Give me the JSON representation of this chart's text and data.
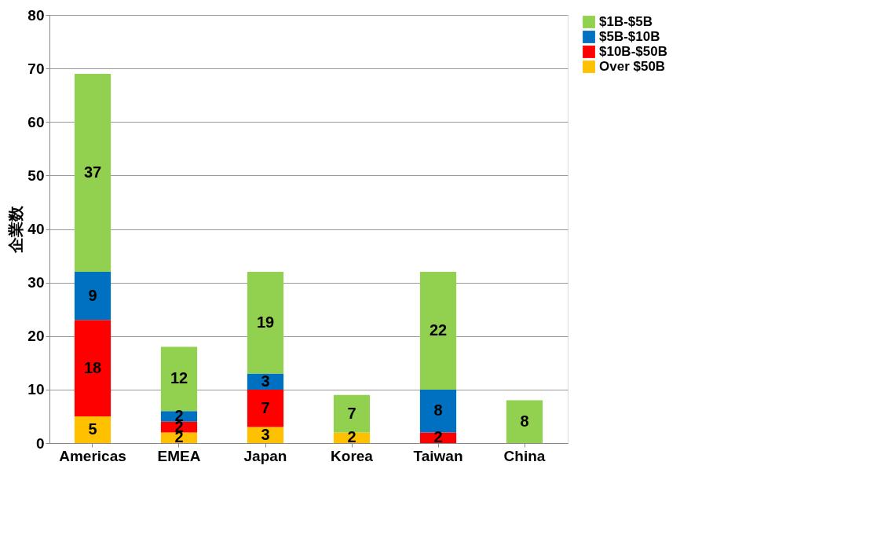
{
  "chart_data": {
    "type": "bar",
    "stacked": true,
    "ylabel": "企業数",
    "categories": [
      "Americas",
      "EMEA",
      "Japan",
      "Korea",
      "Taiwan",
      "China"
    ],
    "series": [
      {
        "name": "Over $50B",
        "color": "#ffc000",
        "values": [
          5,
          2,
          3,
          2,
          0,
          0
        ],
        "value_labels": [
          "5",
          "2",
          "3",
          "2",
          null,
          null
        ]
      },
      {
        "name": "$10B-$50B",
        "color": "#ff0000",
        "values": [
          18,
          2,
          7,
          0,
          2,
          0
        ],
        "value_labels": [
          "18",
          "2",
          "7",
          null,
          "2",
          null
        ]
      },
      {
        "name": "$5B-$10B",
        "color": "#0070c0",
        "values": [
          9,
          2,
          3,
          0,
          8,
          0
        ],
        "value_labels": [
          "9",
          "2",
          "3",
          null,
          "8",
          null
        ]
      },
      {
        "name": "$1B-$5B",
        "color": "#92d050",
        "values": [
          37,
          12,
          19,
          7,
          22,
          8
        ],
        "value_labels": [
          "37",
          "12",
          "19",
          "7",
          "22",
          "8"
        ]
      }
    ],
    "ylim": [
      0,
      80
    ],
    "yticks": [
      0,
      10,
      20,
      30,
      40,
      50,
      60,
      70,
      80
    ],
    "grid": "y",
    "legend": "right"
  }
}
